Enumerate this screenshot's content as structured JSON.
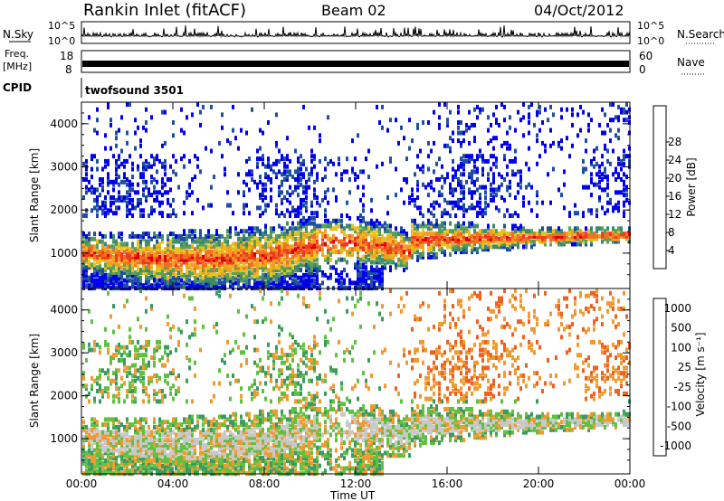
{
  "header": {
    "title": "Rankin Inlet (fitACF)",
    "beam": "Beam 02",
    "date": "04/Oct/2012"
  },
  "top_panels": {
    "nsky_label": "N.Sky",
    "nsky_ticks": [
      "10^5",
      "10^0"
    ],
    "nsearch_label": "N.Search",
    "freq_label_1": "Freq.",
    "freq_label_2": "[MHz]",
    "freq_ticks": [
      "18",
      "8"
    ],
    "nave_label": "Nave",
    "nave_ticks": [
      "60",
      "0"
    ],
    "cpid_label": "CPID",
    "cpid_value": "twofsound 3501"
  },
  "colors": {
    "power": [
      "#0000ee",
      "#1f4fa0",
      "#3f8a6b",
      "#5aa05a",
      "#e8c020",
      "#f0a020",
      "#f07020",
      "#f03a20",
      "#e00000"
    ],
    "velocity": [
      "#e00000",
      "#f06020",
      "#f09a30",
      "#c8c8c8",
      "#d0d0d0",
      "#60c040",
      "#3a9a60",
      "#2050b0"
    ]
  },
  "chart_data": [
    {
      "type": "heatmap",
      "name": "power",
      "ylabel": "Slant Range [km]",
      "yticks": [
        "1000",
        "2000",
        "3000",
        "4000"
      ],
      "colorbar": {
        "label": "Power [dB]",
        "ticks": [
          "4",
          "8",
          "12",
          "16",
          "20",
          "24",
          "28"
        ]
      }
    },
    {
      "type": "heatmap",
      "name": "velocity",
      "ylabel": "Slant Range [km]",
      "yticks": [
        "1000",
        "2000",
        "3000",
        "4000"
      ],
      "xlabel": "Time UT",
      "xticks": [
        "00:00",
        "04:00",
        "08:00",
        "12:00",
        "16:00",
        "20:00",
        "00:00"
      ],
      "colorbar": {
        "label": "Velocity [m s⁻¹]",
        "ticks": [
          "1000",
          "500",
          "100",
          "25",
          "-25",
          "-100",
          "-500",
          "-1000"
        ]
      }
    }
  ]
}
